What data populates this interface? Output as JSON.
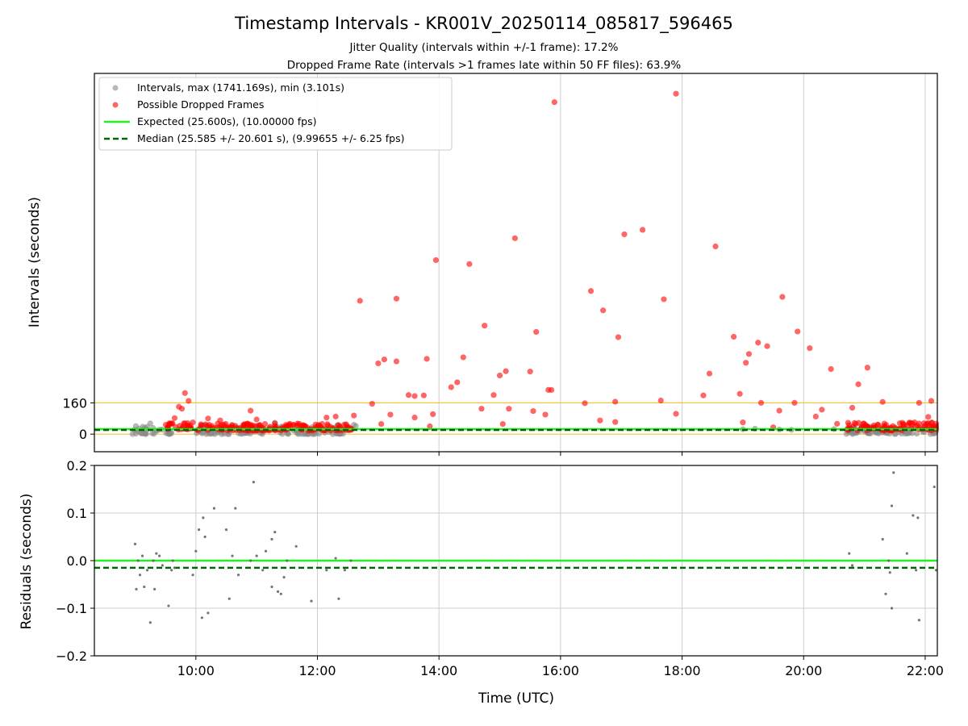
{
  "chart_data": [
    {
      "type": "scatter",
      "title": "Timestamp Intervals - KR001V_20250114_085817_596465",
      "subtitle_lines": [
        "Jitter Quality (intervals within +/-1 frame): 17.2%",
        "Dropped Frame Rate (intervals >1 frames late within 50 FF files): 63.9%"
      ],
      "xlabel": "",
      "ylabel": "Intervals (seconds)",
      "x_range_hours": [
        8.33,
        22.2
      ],
      "x_ticks": [
        10,
        12,
        14,
        16,
        18,
        20,
        22
      ],
      "x_tick_labels": [
        "10:00",
        "12:00",
        "14:00",
        "16:00",
        "18:00",
        "20:00",
        "22:00"
      ],
      "y_ticks": [
        0,
        160
      ],
      "y_range": [
        -90,
        1845
      ],
      "grid": "vertical",
      "legend_position": "top-left",
      "colors": {
        "intervals": "#888888",
        "dropped": "#ff0000",
        "expected": "#22ee22",
        "median": "#006400",
        "threshold": "#f5c542"
      },
      "reference_lines": {
        "threshold": 160,
        "zero": 0,
        "expected": 25.6,
        "median": 25.585
      },
      "legend": [
        {
          "label": "Intervals, max (1741.169s), min (3.101s)",
          "marker": "dot",
          "color": "#888888"
        },
        {
          "label": "Possible Dropped Frames",
          "marker": "dot",
          "color": "#ff0000"
        },
        {
          "label": "Expected (25.600s), (10.00000 fps)",
          "marker": "solid",
          "color": "#22ee22"
        },
        {
          "label": "Median (25.585 +/- 20.601 s), (9.99655 +/- 6.25 fps)",
          "marker": "dashed",
          "color": "#006400"
        }
      ],
      "series": [
        {
          "name": "Possible Dropped Frames",
          "points": [
            [
              9.65,
              82
            ],
            [
              9.72,
              140
            ],
            [
              9.77,
              130
            ],
            [
              9.82,
              210
            ],
            [
              9.88,
              170
            ],
            [
              9.95,
              60
            ],
            [
              10.2,
              80
            ],
            [
              10.4,
              70
            ],
            [
              10.9,
              120
            ],
            [
              11.0,
              75
            ],
            [
              11.3,
              55
            ],
            [
              12.15,
              85
            ],
            [
              12.3,
              90
            ],
            [
              12.6,
              95
            ],
            [
              12.7,
              682
            ],
            [
              12.9,
              155
            ],
            [
              13.0,
              362
            ],
            [
              13.1,
              382
            ],
            [
              13.05,
              52
            ],
            [
              13.2,
              100
            ],
            [
              13.3,
              372
            ],
            [
              13.3,
              693
            ],
            [
              13.5,
              200
            ],
            [
              13.6,
              195
            ],
            [
              13.75,
              198
            ],
            [
              13.6,
              85
            ],
            [
              13.8,
              385
            ],
            [
              13.9,
              102
            ],
            [
              13.95,
              890
            ],
            [
              13.85,
              40
            ],
            [
              14.2,
              240
            ],
            [
              14.3,
              265
            ],
            [
              14.4,
              393
            ],
            [
              14.5,
              870
            ],
            [
              14.7,
              130
            ],
            [
              14.75,
              555
            ],
            [
              14.9,
              200
            ],
            [
              15.0,
              300
            ],
            [
              15.1,
              322
            ],
            [
              15.05,
              52
            ],
            [
              15.15,
              130
            ],
            [
              15.25,
              1002
            ],
            [
              15.5,
              320
            ],
            [
              15.6,
              523
            ],
            [
              15.55,
              118
            ],
            [
              15.75,
              100
            ],
            [
              15.8,
              226
            ],
            [
              15.85,
              226
            ],
            [
              15.9,
              1698
            ],
            [
              16.4,
              158
            ],
            [
              16.5,
              732
            ],
            [
              16.65,
              70
            ],
            [
              16.7,
              633
            ],
            [
              16.9,
              166
            ],
            [
              16.9,
              62
            ],
            [
              16.95,
              496
            ],
            [
              17.05,
              1022
            ],
            [
              17.35,
              1045
            ],
            [
              17.65,
              172
            ],
            [
              17.7,
              690
            ],
            [
              17.9,
              104
            ],
            [
              17.9,
              1741
            ],
            [
              18.35,
              198
            ],
            [
              18.45,
              310
            ],
            [
              18.55,
              960
            ],
            [
              18.85,
              498
            ],
            [
              18.95,
              206
            ],
            [
              19.0,
              60
            ],
            [
              19.05,
              365
            ],
            [
              19.1,
              410
            ],
            [
              19.25,
              468
            ],
            [
              19.3,
              160
            ],
            [
              19.4,
              450
            ],
            [
              19.5,
              35
            ],
            [
              19.6,
              120
            ],
            [
              19.65,
              702
            ],
            [
              19.85,
              160
            ],
            [
              19.9,
              525
            ],
            [
              20.1,
              440
            ],
            [
              20.2,
              90
            ],
            [
              20.3,
              125
            ],
            [
              20.45,
              333
            ],
            [
              20.55,
              53
            ],
            [
              20.8,
              135
            ],
            [
              20.9,
              255
            ],
            [
              21.05,
              340
            ],
            [
              21.3,
              165
            ],
            [
              21.65,
              50
            ],
            [
              21.9,
              160
            ],
            [
              22.05,
              88
            ],
            [
              22.1,
              170
            ],
            [
              22.15,
              40
            ]
          ],
          "bands": [
            {
              "x": [
                9.5,
                9.9
              ],
              "y": [
                20,
                60
              ]
            },
            {
              "x": [
                9.9,
                12.6
              ],
              "y": [
                18,
                55
              ]
            },
            {
              "x": [
                20.7,
                22.2
              ],
              "y": [
                18,
                60
              ]
            }
          ]
        },
        {
          "name": "Intervals, max (1741.169s), min (3.101s)",
          "bands": [
            {
              "x": [
                8.95,
                9.6
              ],
              "y": [
                0,
                55
              ]
            },
            {
              "x": [
                10.0,
                12.65
              ],
              "y": [
                0,
                48
              ]
            },
            {
              "x": [
                20.7,
                22.2
              ],
              "y": [
                0,
                40
              ]
            }
          ],
          "points": [
            [
              9.2,
              38
            ],
            [
              9.25,
              55
            ],
            [
              11.3,
              58
            ],
            [
              10.6,
              45
            ],
            [
              12.6,
              48
            ],
            [
              19.0,
              25
            ],
            [
              19.2,
              28
            ],
            [
              19.6,
              24
            ],
            [
              19.8,
              22
            ],
            [
              20.5,
              26
            ],
            [
              21.4,
              28
            ],
            [
              21.7,
              25
            ]
          ]
        }
      ]
    },
    {
      "type": "scatter",
      "xlabel": "Time (UTC)",
      "ylabel": "Residuals (seconds)",
      "x_range_hours": [
        8.33,
        22.2
      ],
      "x_ticks": [
        10,
        12,
        14,
        16,
        18,
        20,
        22
      ],
      "x_tick_labels": [
        "10:00",
        "12:00",
        "14:00",
        "16:00",
        "18:00",
        "20:00",
        "22:00"
      ],
      "y_ticks": [
        0.2,
        0.1,
        0.0,
        -0.1,
        -0.2
      ],
      "y_tick_labels": [
        "0.2",
        "0.1",
        "0.0",
        "−0.1",
        "−0.2"
      ],
      "y_range": [
        -0.2,
        0.2
      ],
      "grid": "both",
      "reference_lines": {
        "expected": 0.0,
        "median": -0.015
      },
      "series": [
        {
          "name": "Residuals",
          "points": [
            [
              9.0,
              0.035
            ],
            [
              9.02,
              -0.06
            ],
            [
              9.05,
              0.0
            ],
            [
              9.08,
              -0.03
            ],
            [
              9.12,
              0.01
            ],
            [
              9.15,
              -0.055
            ],
            [
              9.2,
              -0.02
            ],
            [
              9.25,
              -0.13
            ],
            [
              9.3,
              0.0
            ],
            [
              9.32,
              -0.06
            ],
            [
              9.35,
              0.015
            ],
            [
              9.4,
              0.01
            ],
            [
              9.45,
              -0.01
            ],
            [
              9.55,
              -0.095
            ],
            [
              9.6,
              -0.02
            ],
            [
              9.62,
              0.0
            ],
            [
              9.65,
              -0.015
            ],
            [
              9.95,
              -0.03
            ],
            [
              10.0,
              0.02
            ],
            [
              10.05,
              0.065
            ],
            [
              10.1,
              -0.12
            ],
            [
              10.12,
              0.09
            ],
            [
              10.15,
              0.05
            ],
            [
              10.2,
              -0.11
            ],
            [
              10.3,
              0.11
            ],
            [
              10.5,
              0.065
            ],
            [
              10.55,
              -0.08
            ],
            [
              10.6,
              0.01
            ],
            [
              10.65,
              0.11
            ],
            [
              10.7,
              -0.03
            ],
            [
              10.9,
              0.0
            ],
            [
              10.95,
              0.165
            ],
            [
              11.0,
              0.01
            ],
            [
              11.1,
              -0.02
            ],
            [
              11.15,
              0.02
            ],
            [
              11.25,
              0.045
            ],
            [
              11.3,
              0.06
            ],
            [
              11.35,
              -0.065
            ],
            [
              11.25,
              -0.055
            ],
            [
              11.4,
              -0.07
            ],
            [
              11.45,
              -0.035
            ],
            [
              11.5,
              0.0
            ],
            [
              11.65,
              0.03
            ],
            [
              11.9,
              -0.085
            ],
            [
              12.15,
              -0.02
            ],
            [
              12.3,
              0.005
            ],
            [
              12.35,
              -0.08
            ],
            [
              12.45,
              -0.02
            ],
            [
              12.55,
              0.0
            ],
            [
              20.75,
              0.015
            ],
            [
              20.8,
              -0.01
            ],
            [
              21.3,
              0.045
            ],
            [
              21.35,
              -0.07
            ],
            [
              21.4,
              0.0
            ],
            [
              21.42,
              -0.025
            ],
            [
              21.45,
              0.115
            ],
            [
              21.48,
              0.185
            ],
            [
              21.45,
              -0.1
            ],
            [
              21.7,
              0.015
            ],
            [
              21.8,
              0.095
            ],
            [
              21.85,
              -0.02
            ],
            [
              21.88,
              0.09
            ],
            [
              21.9,
              -0.125
            ],
            [
              22.15,
              0.155
            ],
            [
              22.18,
              -0.02
            ]
          ]
        }
      ]
    }
  ]
}
